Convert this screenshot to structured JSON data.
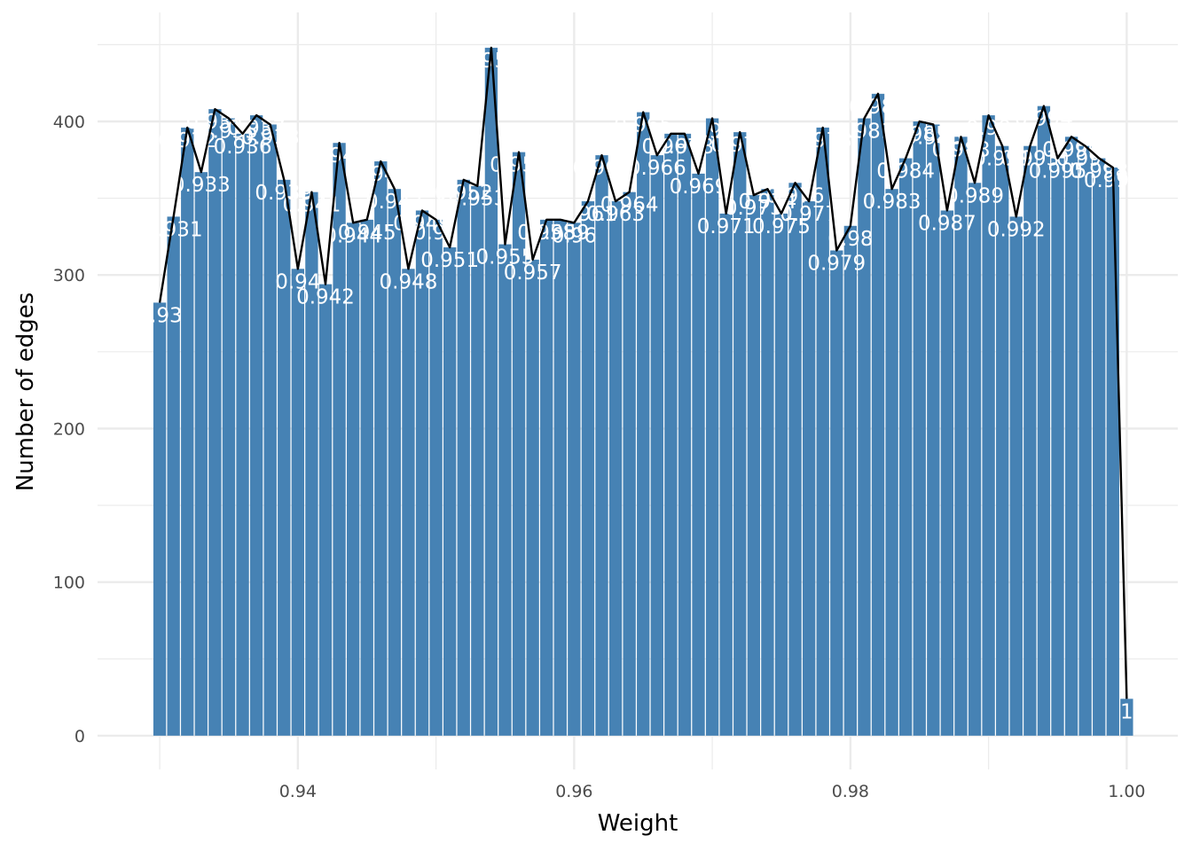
{
  "chart_data": {
    "type": "bar",
    "title": "",
    "xlabel": "Weight",
    "ylabel": "Number of edges",
    "xlim": [
      0.9255,
      1.0037
    ],
    "ylim": [
      -22,
      471
    ],
    "x_ticks": [
      0.94,
      0.96,
      0.98,
      1.0
    ],
    "x_tick_labels": [
      "0.94",
      "0.96",
      "0.98",
      "1.00"
    ],
    "y_ticks": [
      0,
      100,
      200,
      300,
      400
    ],
    "y_tick_labels": [
      "0",
      "100",
      "200",
      "300",
      "400"
    ],
    "grid": true,
    "legend": "none",
    "colors": {
      "bar": "#4682b4",
      "line": "#000000",
      "label": "#ffffff",
      "grid": "#ebebeb"
    },
    "bars": [
      {
        "x": 0.93,
        "y": 282,
        "label": "0.93"
      },
      {
        "x": 0.931,
        "y": 338,
        "label": "0.931"
      },
      {
        "x": 0.932,
        "y": 396,
        "label": "0.932"
      },
      {
        "x": 0.933,
        "y": 367,
        "label": "0.933"
      },
      {
        "x": 0.934,
        "y": 408,
        "label": "0.934"
      },
      {
        "x": 0.935,
        "y": 402,
        "label": "0.935"
      },
      {
        "x": 0.936,
        "y": 392,
        "label": "0.936"
      },
      {
        "x": 0.937,
        "y": 404,
        "label": "0.937"
      },
      {
        "x": 0.938,
        "y": 398,
        "label": "0.938"
      },
      {
        "x": 0.939,
        "y": 362,
        "label": "0.939"
      },
      {
        "x": 0.94,
        "y": 304,
        "label": "0.94"
      },
      {
        "x": 0.941,
        "y": 354,
        "label": "0.941"
      },
      {
        "x": 0.942,
        "y": 294,
        "label": "0.942"
      },
      {
        "x": 0.943,
        "y": 386,
        "label": "0.943"
      },
      {
        "x": 0.944,
        "y": 334,
        "label": "0.944"
      },
      {
        "x": 0.945,
        "y": 336,
        "label": "0.945"
      },
      {
        "x": 0.946,
        "y": 374,
        "label": "0.946"
      },
      {
        "x": 0.947,
        "y": 356,
        "label": "0.947"
      },
      {
        "x": 0.948,
        "y": 304,
        "label": "0.948"
      },
      {
        "x": 0.949,
        "y": 342,
        "label": "0.949"
      },
      {
        "x": 0.95,
        "y": 336,
        "label": "0.95"
      },
      {
        "x": 0.951,
        "y": 318,
        "label": "0.951"
      },
      {
        "x": 0.952,
        "y": 362,
        "label": "0.952"
      },
      {
        "x": 0.953,
        "y": 358,
        "label": "0.953"
      },
      {
        "x": 0.954,
        "y": 448,
        "label": "0.954"
      },
      {
        "x": 0.955,
        "y": 320,
        "label": "0.955"
      },
      {
        "x": 0.956,
        "y": 380,
        "label": "0.956"
      },
      {
        "x": 0.957,
        "y": 310,
        "label": "0.957"
      },
      {
        "x": 0.958,
        "y": 336,
        "label": "0.958"
      },
      {
        "x": 0.959,
        "y": 336,
        "label": "0.959"
      },
      {
        "x": 0.96,
        "y": 334,
        "label": "0.96"
      },
      {
        "x": 0.961,
        "y": 348,
        "label": "0.961"
      },
      {
        "x": 0.962,
        "y": 378,
        "label": "0.962"
      },
      {
        "x": 0.963,
        "y": 348,
        "label": "0.963"
      },
      {
        "x": 0.964,
        "y": 354,
        "label": "0.964"
      },
      {
        "x": 0.965,
        "y": 406,
        "label": "0.965"
      },
      {
        "x": 0.966,
        "y": 378,
        "label": "0.966"
      },
      {
        "x": 0.967,
        "y": 392,
        "label": "0.967"
      },
      {
        "x": 0.968,
        "y": 392,
        "label": "0.968"
      },
      {
        "x": 0.969,
        "y": 366,
        "label": "0.969"
      },
      {
        "x": 0.97,
        "y": 402,
        "label": "0.97"
      },
      {
        "x": 0.971,
        "y": 340,
        "label": "0.971"
      },
      {
        "x": 0.972,
        "y": 393,
        "label": "0.972"
      },
      {
        "x": 0.973,
        "y": 352,
        "label": "0.973"
      },
      {
        "x": 0.974,
        "y": 356,
        "label": "0.974"
      },
      {
        "x": 0.975,
        "y": 340,
        "label": "0.975"
      },
      {
        "x": 0.976,
        "y": 360,
        "label": "0.976"
      },
      {
        "x": 0.977,
        "y": 348,
        "label": "0.977"
      },
      {
        "x": 0.978,
        "y": 396,
        "label": "0.978"
      },
      {
        "x": 0.979,
        "y": 316,
        "label": "0.979"
      },
      {
        "x": 0.98,
        "y": 332,
        "label": "0.98"
      },
      {
        "x": 0.981,
        "y": 402,
        "label": "0.981"
      },
      {
        "x": 0.982,
        "y": 418,
        "label": "0.982"
      },
      {
        "x": 0.983,
        "y": 356,
        "label": "0.983"
      },
      {
        "x": 0.984,
        "y": 376,
        "label": "0.984"
      },
      {
        "x": 0.985,
        "y": 400,
        "label": "0.985"
      },
      {
        "x": 0.986,
        "y": 398,
        "label": "0.986"
      },
      {
        "x": 0.987,
        "y": 342,
        "label": "0.987"
      },
      {
        "x": 0.988,
        "y": 390,
        "label": "0.988"
      },
      {
        "x": 0.989,
        "y": 360,
        "label": "0.989"
      },
      {
        "x": 0.99,
        "y": 404,
        "label": "0.99"
      },
      {
        "x": 0.991,
        "y": 384,
        "label": "0.991"
      },
      {
        "x": 0.992,
        "y": 338,
        "label": "0.992"
      },
      {
        "x": 0.993,
        "y": 384,
        "label": "0.993"
      },
      {
        "x": 0.994,
        "y": 410,
        "label": "0.994"
      },
      {
        "x": 0.995,
        "y": 376,
        "label": "0.995"
      },
      {
        "x": 0.996,
        "y": 390,
        "label": "0.996"
      },
      {
        "x": 0.997,
        "y": 384,
        "label": "0.997"
      },
      {
        "x": 0.998,
        "y": 376,
        "label": "0.998"
      },
      {
        "x": 0.999,
        "y": 370,
        "label": "0.999"
      },
      {
        "x": 1.0,
        "y": 24,
        "label": "1"
      }
    ]
  }
}
